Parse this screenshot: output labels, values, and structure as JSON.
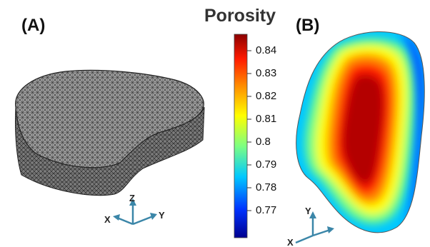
{
  "panels": [
    {
      "label": "(A)"
    },
    {
      "label": "(B)"
    }
  ],
  "colorbar": {
    "title": "Porosity",
    "ticks": [
      "0.84",
      "0.83",
      "0.82",
      "0.81",
      "0.8",
      "0.79",
      "0.78",
      "0.77"
    ]
  },
  "axes_a": {
    "z": "Z",
    "x": "X",
    "y": "Y"
  },
  "axes_b": {
    "y": "Y",
    "x": "X"
  },
  "colors": {
    "mesh_fill": "#9a9a9a",
    "mesh_line": "#2a2a2a",
    "axis_arrow": "#3b86a8",
    "colormap": [
      "#00008f",
      "#0033ff",
      "#00c8ff",
      "#7dff82",
      "#ffff00",
      "#ff8a00",
      "#ff1a00",
      "#8b0000"
    ]
  }
}
